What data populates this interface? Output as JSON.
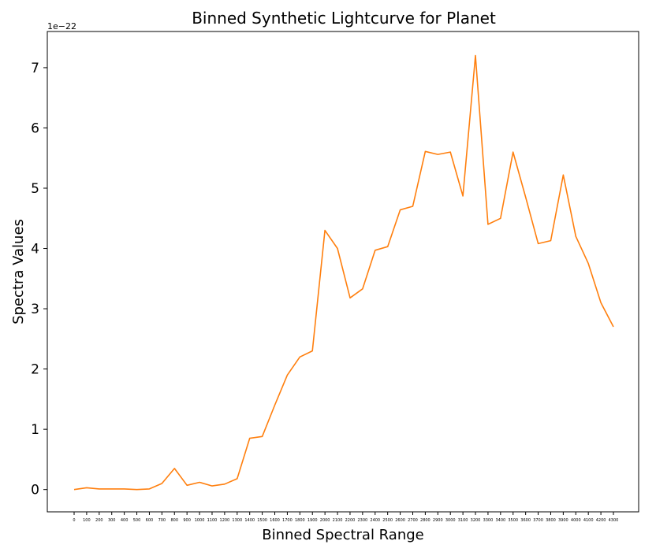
{
  "chart_data": {
    "type": "line",
    "title": "Binned Synthetic Lightcurve for Planet",
    "xlabel": "Binned Spectral Range",
    "ylabel": "Spectra Values",
    "y_offset_label": "1e−22",
    "ylim": [
      -0.37,
      7.6
    ],
    "yticks": [
      0,
      1,
      2,
      3,
      4,
      5,
      6,
      7
    ],
    "grid": false,
    "x": [
      "0",
      "100",
      "200",
      "300",
      "400",
      "500",
      "600",
      "700",
      "800",
      "900",
      "1000",
      "1100",
      "1200",
      "1300",
      "1400",
      "1500",
      "1600",
      "1700",
      "1800",
      "1900",
      "2000",
      "2100",
      "2200",
      "2300",
      "2400",
      "2500",
      "2600",
      "2700",
      "2800",
      "2900",
      "3000",
      "3100",
      "3200",
      "3300",
      "3400",
      "3500",
      "3600",
      "3700",
      "3800",
      "3900",
      "4000",
      "4100",
      "4200",
      "4300"
    ],
    "series": [
      {
        "color": "#ff7f0e",
        "values": [
          0.0,
          0.03,
          0.01,
          0.01,
          0.01,
          0.0,
          0.01,
          0.1,
          0.35,
          0.07,
          0.12,
          0.06,
          0.09,
          0.18,
          0.85,
          0.88,
          1.4,
          1.9,
          2.2,
          2.3,
          4.3,
          4.0,
          3.18,
          3.33,
          3.97,
          4.03,
          4.64,
          4.7,
          5.61,
          5.56,
          5.6,
          4.87,
          7.2,
          4.4,
          4.5,
          5.6,
          4.85,
          4.08,
          4.13,
          5.22,
          4.2,
          3.75,
          3.1,
          2.7
        ]
      }
    ]
  }
}
